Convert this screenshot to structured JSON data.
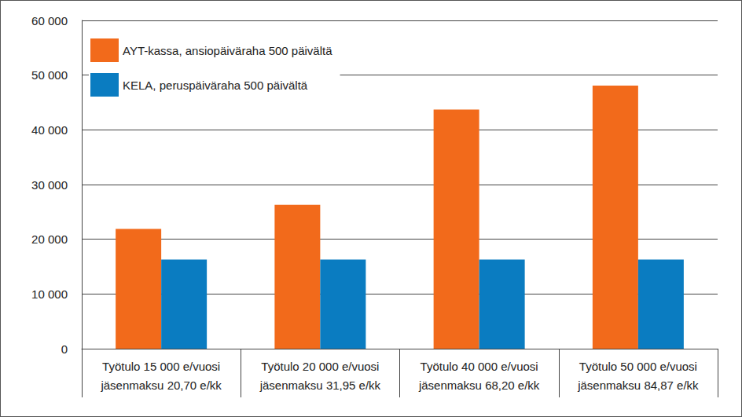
{
  "chart_data": {
    "type": "bar",
    "categories": [
      "Työtulo 15 000 e/vuosi\njäsenmaksu 20,70 e/kk",
      "Työtulo 20 000 e/vuosi\njäsenmaksu 31,95 e/kk",
      "Työtulo 40 000 e/vuosi\njäsenmaksu 68,20 e/kk",
      "Työtulo 50 000 e/vuosi\njäsenmaksu 84,87 e/kk"
    ],
    "series": [
      {
        "name": "AYT-kassa, ansiopäiväraha 500 päivältä",
        "color": "#f26a1b",
        "values": [
          21900,
          26300,
          43700,
          48100
        ]
      },
      {
        "name": "KELA, peruspäiväraha 500 päivältä",
        "color": "#0a7cc1",
        "values": [
          16300,
          16300,
          16300,
          16300
        ]
      }
    ],
    "ylim": [
      0,
      60000
    ],
    "yticks": [
      0,
      {
        "value": 10000,
        "label": "10 000"
      },
      {
        "value": 20000,
        "label": "20 000"
      },
      {
        "value": 30000,
        "label": "30 000"
      },
      {
        "value": 40000,
        "label": "40 000"
      },
      {
        "value": 50000,
        "label": "50 000"
      },
      {
        "value": 60000,
        "label": "60 000"
      }
    ],
    "grid": true,
    "legend": "top-left"
  }
}
